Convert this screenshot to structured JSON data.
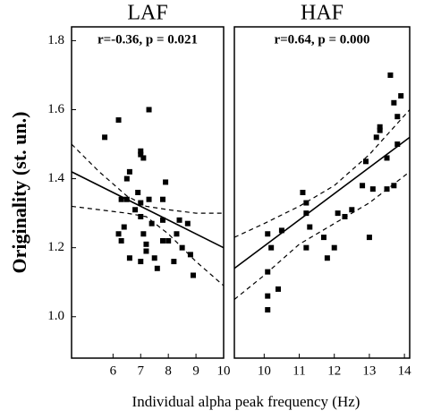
{
  "ylabel": "Originality (st. un.)",
  "xlabel": "Individual alpha peak frequency (Hz)",
  "chart_data": [
    {
      "type": "scatter",
      "title": "LAF",
      "annotation": "r=-0.36, p = 0.021",
      "xlim": [
        4.5,
        10
      ],
      "xticks": [
        6,
        7,
        8,
        9,
        10
      ],
      "ylim": [
        0.88,
        1.84
      ],
      "yticks": [
        {
          "value": 1,
          "label": "1.0"
        },
        1.2,
        1.4,
        1.6,
        1.8
      ],
      "color": "#000000",
      "points": {
        "x": [
          5.7,
          6.2,
          6.5,
          6.6,
          7.0,
          7.0,
          7.1,
          7.3,
          6.9,
          7.0,
          6.8,
          6.3,
          6.5,
          6.4,
          6.2,
          6.3,
          6.6,
          7.0,
          7.1,
          7.2,
          7.3,
          7.4,
          7.0,
          7.2,
          7.6,
          7.8,
          7.9,
          7.8,
          7.8,
          8.0,
          8.3,
          8.4,
          8.5,
          8.7,
          8.8,
          8.9,
          8.2,
          7.5
        ],
        "y": [
          1.52,
          1.57,
          1.4,
          1.42,
          1.47,
          1.48,
          1.46,
          1.6,
          1.36,
          1.33,
          1.31,
          1.34,
          1.34,
          1.26,
          1.24,
          1.22,
          1.17,
          1.29,
          1.24,
          1.21,
          1.34,
          1.27,
          1.16,
          1.19,
          1.14,
          1.22,
          1.39,
          1.34,
          1.28,
          1.22,
          1.24,
          1.28,
          1.2,
          1.27,
          1.18,
          1.12,
          1.16,
          1.17
        ]
      },
      "fit": {
        "x": [
          4.5,
          10
        ],
        "y": [
          1.42,
          1.2
        ]
      },
      "upper_band": {
        "x": [
          4.5,
          5.5,
          6.5,
          7.2,
          8,
          9,
          10
        ],
        "y": [
          1.5,
          1.42,
          1.35,
          1.32,
          1.31,
          1.3,
          1.3
        ]
      },
      "lower_band": {
        "x": [
          4.5,
          5.5,
          6.5,
          7.2,
          8,
          9,
          10
        ],
        "y": [
          1.32,
          1.31,
          1.3,
          1.29,
          1.24,
          1.16,
          1.09
        ]
      }
    },
    {
      "type": "scatter",
      "title": "HAF",
      "annotation": "r=0.64, p = 0.000",
      "xlim": [
        9.15,
        14.15
      ],
      "xticks": [
        10,
        11,
        12,
        13,
        14
      ],
      "ylim": [
        0.88,
        1.84
      ],
      "color": "#000000",
      "points": {
        "x": [
          10.1,
          10.2,
          10.1,
          10.1,
          10.1,
          10.4,
          10.5,
          11.1,
          11.2,
          11.2,
          11.3,
          11.2,
          11.7,
          11.8,
          12.0,
          12.1,
          12.3,
          12.5,
          12.8,
          12.9,
          13.0,
          13.1,
          13.2,
          13.3,
          13.3,
          13.5,
          13.5,
          13.6,
          13.7,
          13.8,
          13.7,
          13.8,
          13.9
        ],
        "y": [
          1.24,
          1.2,
          1.13,
          1.06,
          1.02,
          1.08,
          1.25,
          1.36,
          1.33,
          1.3,
          1.26,
          1.2,
          1.23,
          1.17,
          1.2,
          1.3,
          1.29,
          1.31,
          1.38,
          1.45,
          1.23,
          1.37,
          1.52,
          1.55,
          1.54,
          1.46,
          1.37,
          1.7,
          1.62,
          1.58,
          1.38,
          1.5,
          1.64
        ]
      },
      "fit": {
        "x": [
          9.15,
          14.15
        ],
        "y": [
          1.14,
          1.52
        ]
      },
      "upper_band": {
        "x": [
          9.15,
          10,
          11,
          12,
          13,
          14.15
        ],
        "y": [
          1.23,
          1.27,
          1.32,
          1.38,
          1.47,
          1.6
        ]
      },
      "lower_band": {
        "x": [
          9.15,
          10,
          11,
          12,
          13,
          14.15
        ],
        "y": [
          1.05,
          1.12,
          1.21,
          1.27,
          1.33,
          1.42
        ]
      }
    }
  ]
}
